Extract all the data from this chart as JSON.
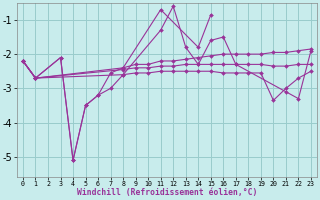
{
  "xlabel": "Windchill (Refroidissement éolien,°C)",
  "background_color": "#c8ecec",
  "grid_color": "#99cccc",
  "line_color": "#993399",
  "x_ticks": [
    0,
    1,
    2,
    3,
    4,
    5,
    6,
    7,
    8,
    9,
    10,
    11,
    12,
    13,
    14,
    15,
    16,
    17,
    18,
    19,
    20,
    21,
    22,
    23
  ],
  "ylim": [
    -5.6,
    -0.5
  ],
  "yticks": [
    -5,
    -4,
    -3,
    -2,
    -1
  ],
  "lines": [
    {
      "x": [
        0,
        1,
        3,
        4,
        5,
        6,
        7,
        8,
        11,
        12,
        13,
        14,
        15,
        16,
        17,
        21,
        22,
        23
      ],
      "y": [
        -2.2,
        -2.7,
        -2.1,
        -5.1,
        -3.5,
        -3.2,
        -3.0,
        -2.6,
        -1.3,
        -0.6,
        -1.8,
        -2.3,
        -1.6,
        -1.5,
        -2.3,
        -3.1,
        -3.3,
        -1.9
      ]
    },
    {
      "x": [
        0,
        1,
        3,
        4,
        5,
        6,
        7,
        8,
        11,
        14,
        15
      ],
      "y": [
        -2.2,
        -2.7,
        -2.1,
        -5.1,
        -3.5,
        -3.2,
        -2.55,
        -2.4,
        -0.7,
        -1.8,
        -0.85
      ]
    },
    {
      "x": [
        0,
        1,
        8,
        9,
        10,
        11,
        12,
        13,
        14,
        15,
        16,
        17,
        18,
        19,
        20,
        21,
        22,
        23
      ],
      "y": [
        -2.2,
        -2.7,
        -2.4,
        -2.3,
        -2.3,
        -2.2,
        -2.2,
        -2.15,
        -2.1,
        -2.05,
        -2.0,
        -2.0,
        -2.0,
        -2.0,
        -1.95,
        -1.95,
        -1.9,
        -1.85
      ]
    },
    {
      "x": [
        0,
        1,
        8,
        9,
        10,
        11,
        12,
        13,
        14,
        15,
        16,
        17,
        18,
        19,
        20,
        21,
        22,
        23
      ],
      "y": [
        -2.2,
        -2.7,
        -2.45,
        -2.4,
        -2.4,
        -2.35,
        -2.35,
        -2.3,
        -2.3,
        -2.3,
        -2.3,
        -2.3,
        -2.3,
        -2.3,
        -2.35,
        -2.35,
        -2.3,
        -2.3
      ]
    },
    {
      "x": [
        0,
        1,
        8,
        9,
        10,
        11,
        12,
        13,
        14,
        15,
        16,
        17,
        18,
        19,
        20,
        21,
        22,
        23
      ],
      "y": [
        -2.2,
        -2.7,
        -2.6,
        -2.55,
        -2.55,
        -2.5,
        -2.5,
        -2.5,
        -2.5,
        -2.5,
        -2.55,
        -2.55,
        -2.55,
        -2.55,
        -3.35,
        -3.0,
        -2.7,
        -2.5
      ]
    }
  ]
}
